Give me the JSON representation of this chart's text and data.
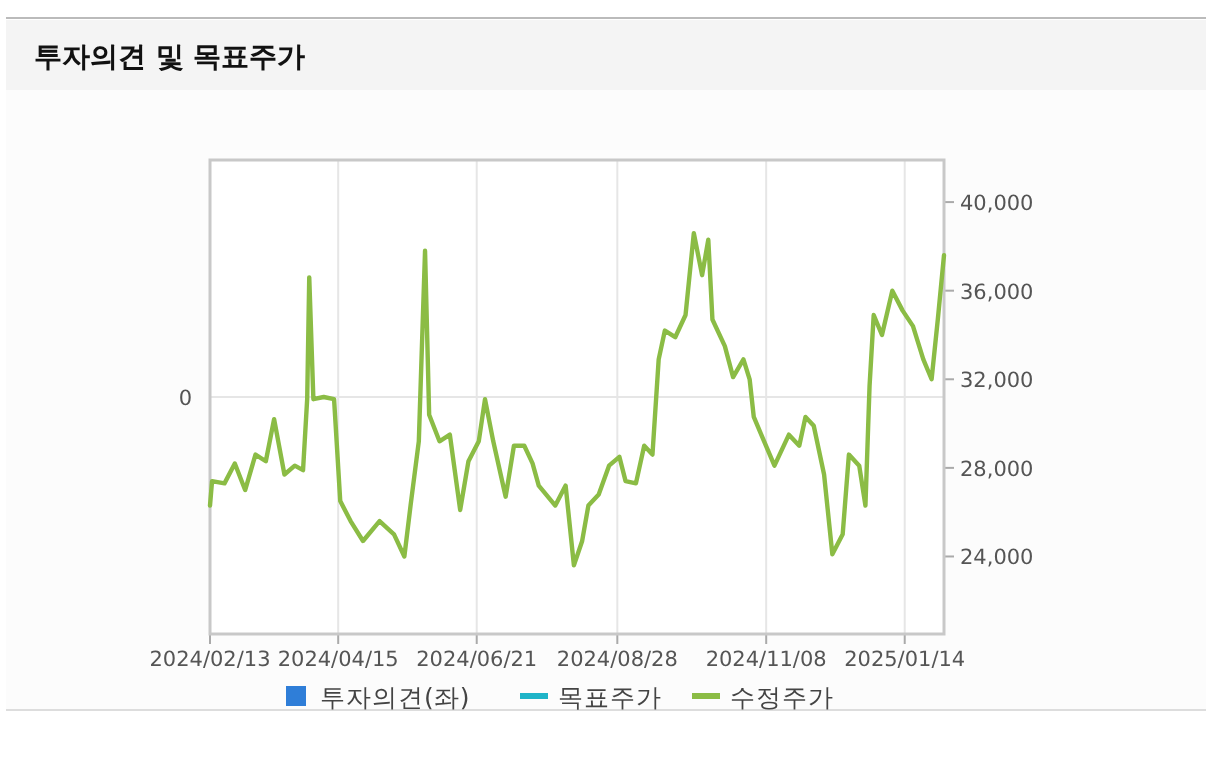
{
  "chart_data": {
    "type": "line",
    "title": "투자의견 및 목표주가",
    "x": [
      "2024-02-13",
      "2024-02-14",
      "2024-02-20",
      "2024-02-25",
      "2024-03-01",
      "2024-03-06",
      "2024-03-11",
      "2024-03-15",
      "2024-03-20",
      "2024-03-25",
      "2024-03-29",
      "2024-03-31",
      "2024-04-01",
      "2024-04-03",
      "2024-04-08",
      "2024-04-13",
      "2024-04-16",
      "2024-04-21",
      "2024-04-27",
      "2024-05-05",
      "2024-05-12",
      "2024-05-17",
      "2024-05-20",
      "2024-05-24",
      "2024-05-27",
      "2024-05-29",
      "2024-06-03",
      "2024-06-08",
      "2024-06-13",
      "2024-06-17",
      "2024-06-22",
      "2024-06-25",
      "2024-06-29",
      "2024-07-05",
      "2024-07-09",
      "2024-07-14",
      "2024-07-18",
      "2024-07-21",
      "2024-07-29",
      "2024-08-03",
      "2024-08-07",
      "2024-08-11",
      "2024-08-14",
      "2024-08-19",
      "2024-08-24",
      "2024-08-29",
      "2024-09-01",
      "2024-09-06",
      "2024-09-10",
      "2024-09-14",
      "2024-09-17",
      "2024-09-20",
      "2024-09-25",
      "2024-09-30",
      "2024-10-04",
      "2024-10-08",
      "2024-10-11",
      "2024-10-13",
      "2024-10-19",
      "2024-10-23",
      "2024-10-28",
      "2024-10-31",
      "2024-11-02",
      "2024-11-07",
      "2024-11-12",
      "2024-11-19",
      "2024-11-24",
      "2024-11-27",
      "2024-12-01",
      "2024-12-06",
      "2024-12-10",
      "2024-12-15",
      "2024-12-18",
      "2024-12-23",
      "2024-12-26",
      "2024-12-28",
      "2024-12-30",
      "2025-01-03",
      "2025-01-08",
      "2025-01-13",
      "2025-01-18",
      "2025-01-23",
      "2025-01-27",
      "2025-01-30",
      "2025-02-02"
    ],
    "series": [
      {
        "name": "투자의견(좌)",
        "type": "bar",
        "color": "#2f7ed8",
        "values": [
          null,
          null,
          null,
          null,
          null,
          null,
          null,
          null,
          null,
          null,
          null,
          null,
          null,
          null,
          null,
          null,
          null,
          null,
          null,
          null,
          null,
          null,
          null,
          null,
          null,
          null,
          null,
          null,
          null,
          null,
          null,
          null,
          null,
          null,
          null,
          null,
          null,
          null,
          null,
          null,
          null,
          null,
          null,
          null,
          null,
          null,
          null,
          null,
          null,
          null,
          null,
          null,
          null,
          null,
          null,
          null,
          null,
          null,
          null,
          null,
          null,
          null,
          null,
          null,
          null,
          null,
          null,
          null,
          null,
          null,
          null,
          null,
          null,
          null,
          null,
          null,
          null,
          null,
          null,
          null,
          null,
          null,
          null,
          null,
          null
        ]
      },
      {
        "name": "목표주가",
        "type": "line",
        "axis": "y2",
        "color": "#1fb4c8",
        "values": [
          null,
          null,
          null,
          null,
          null,
          null,
          null,
          null,
          null,
          null,
          null,
          null,
          null,
          null,
          null,
          null,
          null,
          null,
          null,
          null,
          null,
          null,
          null,
          null,
          null,
          null,
          null,
          null,
          null,
          null,
          null,
          null,
          null,
          null,
          null,
          null,
          null,
          null,
          null,
          null,
          null,
          null,
          null,
          null,
          null,
          null,
          null,
          null,
          null,
          null,
          null,
          null,
          null,
          null,
          null,
          null,
          null,
          null,
          null,
          null,
          null,
          null,
          null,
          null,
          null,
          null,
          null,
          null,
          null,
          null,
          null,
          null,
          null,
          null,
          null,
          null,
          null,
          null,
          null,
          null,
          null,
          null,
          null,
          null,
          null
        ]
      },
      {
        "name": "수정주가",
        "axis": "y2",
        "color": "#8bbc45",
        "values": [
          26300,
          27400,
          27300,
          28200,
          27000,
          28600,
          28300,
          30200,
          27700,
          28100,
          27900,
          31100,
          36600,
          31100,
          31200,
          31100,
          26500,
          25600,
          24700,
          25600,
          25000,
          24000,
          26300,
          29200,
          37800,
          30400,
          29200,
          29500,
          26100,
          28300,
          29200,
          31100,
          29200,
          26700,
          29000,
          29000,
          28200,
          27200,
          26300,
          27200,
          23600,
          24700,
          26300,
          26800,
          28100,
          28500,
          27400,
          27300,
          29000,
          28600,
          32900,
          34200,
          33900,
          34900,
          38600,
          36700,
          38300,
          34700,
          33500,
          32100,
          32900,
          32000,
          30300,
          29200,
          28100,
          29500,
          29000,
          30300,
          29900,
          27700,
          24100,
          25000,
          28600,
          28100,
          26300,
          31700,
          34900,
          34000,
          36000,
          35100,
          34400,
          32900,
          32000,
          34700,
          37600
        ]
      }
    ],
    "xlim": [
      "2024-02-13",
      "2025-02-02"
    ],
    "xticks": [
      {
        "value": "2024-02-13",
        "label": "2024/02/13"
      },
      {
        "value": "2024-04-15",
        "label": "2024/04/15"
      },
      {
        "value": "2024-06-21",
        "label": "2024/06/21"
      },
      {
        "value": "2024-08-28",
        "label": "2024/08/28"
      },
      {
        "value": "2024-11-08",
        "label": "2024/11/08"
      },
      {
        "value": "2025-01-14",
        "label": "2025/01/14"
      }
    ],
    "annotations": [
      "0"
    ],
    "y2lim": [
      20500,
      41900
    ],
    "y2ticks": [
      {
        "value": 24000,
        "label": "24,000"
      },
      {
        "value": 28000,
        "label": "28,000"
      },
      {
        "value": 32000,
        "label": "32,000"
      },
      {
        "value": 36000,
        "label": "36,000"
      },
      {
        "value": 40000,
        "label": "40,000"
      }
    ],
    "grid": true,
    "legend": "bottom"
  }
}
